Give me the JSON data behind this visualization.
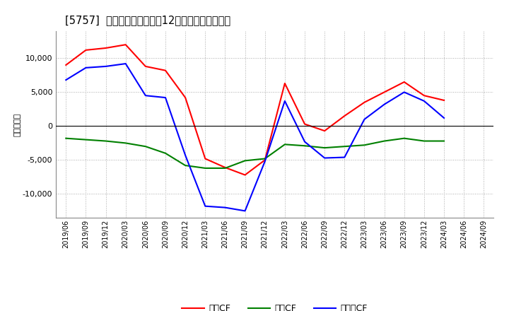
{
  "title": "[5757]  キャッシュフローの12か月移動合計の推移",
  "ylabel": "（百万円）",
  "background_color": "#ffffff",
  "plot_bg_color": "#ffffff",
  "grid_color": "#aaaaaa",
  "x_labels": [
    "2019/06",
    "2019/09",
    "2019/12",
    "2020/03",
    "2020/06",
    "2020/09",
    "2020/12",
    "2021/03",
    "2021/06",
    "2021/09",
    "2021/12",
    "2022/03",
    "2022/06",
    "2022/09",
    "2022/12",
    "2023/03",
    "2023/06",
    "2023/09",
    "2023/12",
    "2024/03",
    "2024/06",
    "2024/09"
  ],
  "eigyo_cf": [
    9000,
    11200,
    11500,
    12000,
    8800,
    8200,
    4200,
    -4800,
    -6100,
    -7200,
    -5000,
    6300,
    300,
    -700,
    1500,
    3500,
    5000,
    6500,
    4500,
    3800,
    null,
    null
  ],
  "toshi_cf": [
    -1800,
    -2000,
    -2200,
    -2500,
    -3000,
    -4000,
    -5800,
    -6200,
    -6200,
    -5100,
    -4800,
    -2700,
    -2900,
    -3200,
    -3000,
    -2800,
    -2200,
    -1800,
    -2200,
    -2200,
    null,
    null
  ],
  "free_cf": [
    6800,
    8600,
    8800,
    9200,
    4500,
    4200,
    -4300,
    -11800,
    -12000,
    -12500,
    -5200,
    3700,
    -2300,
    -4700,
    -4600,
    1000,
    3200,
    5000,
    3700,
    1200,
    null,
    null
  ],
  "eigyo_color": "#ff0000",
  "toshi_color": "#008000",
  "free_color": "#0000ff",
  "ylim": [
    -13500,
    14000
  ],
  "yticks": [
    -10000,
    -5000,
    0,
    5000,
    10000
  ],
  "legend_labels": [
    "営業CF",
    "投資CF",
    "フリーCF"
  ]
}
